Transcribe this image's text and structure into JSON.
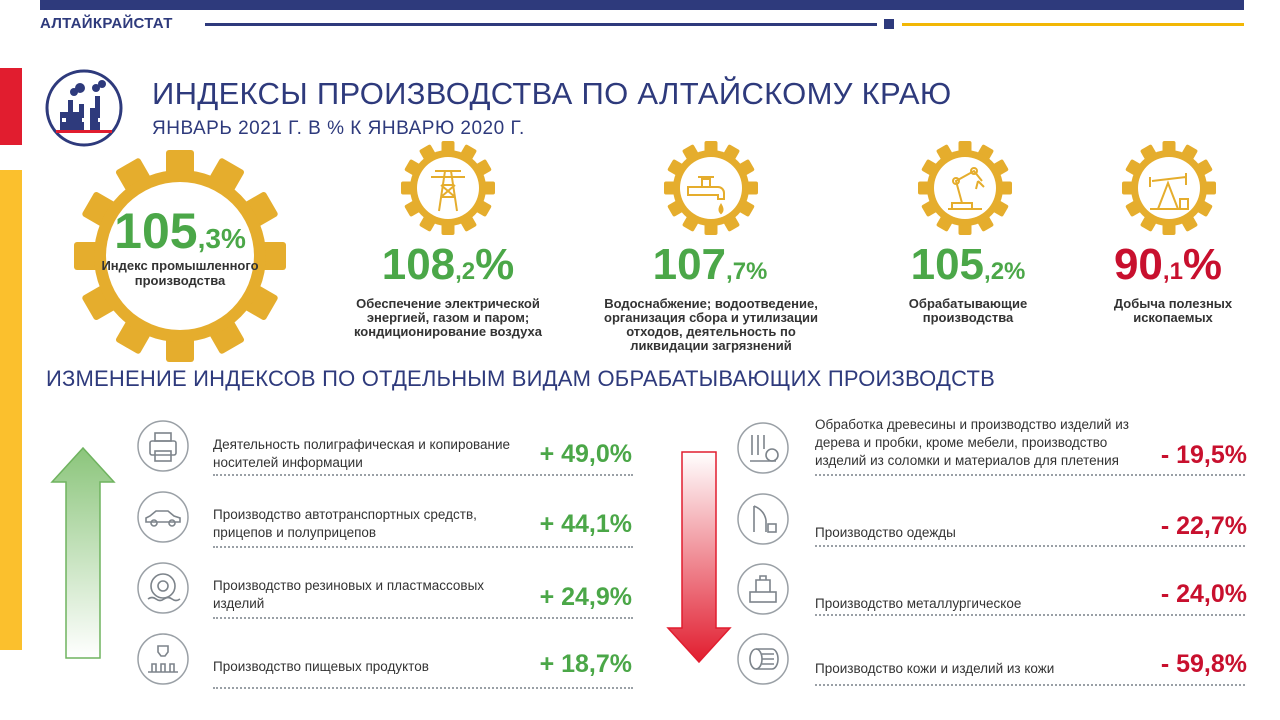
{
  "header": {
    "agency": "АЛТАЙКРАЙСТАТ",
    "title": "ИНДЕКСЫ ПРОИЗВОДСТВА ПО АЛТАЙСКОМУ КРАЮ",
    "subtitle": "ЯНВАРЬ 2021 Г. В % К ЯНВАРЮ 2020 Г."
  },
  "main_index": {
    "value_int": "105",
    "value_dec": ",3%",
    "label": "Индекс промышленного производства",
    "icon": "factory-icon"
  },
  "categories": [
    {
      "value_int": "108",
      "value_dec": ",2",
      "pct": "%",
      "label": "Обеспечение электрической энергией, газом и паром; кондиционирование воздуха",
      "icon": "power-tower-icon",
      "trend": "up"
    },
    {
      "value_int": "107",
      "value_dec": ",7",
      "pct": "%",
      "label": "Водоснабжение; водоотведение, организация сбора и утилизации отходов, деятельность по ликвидации загрязнений",
      "icon": "water-tap-icon",
      "trend": "up"
    },
    {
      "value_int": "105",
      "value_dec": ",2",
      "pct": "%",
      "label": "Обрабатывающие производства",
      "icon": "robot-arm-icon",
      "trend": "up"
    },
    {
      "value_int": "90",
      "value_dec": ",1",
      "pct": "%",
      "label": "Добыча полезных ископаемых",
      "icon": "oil-pump-icon",
      "trend": "down"
    }
  ],
  "section_title": "ИЗМЕНЕНИЕ ИНДЕКСОВ ПО ОТДЕЛЬНЫМ ВИДАМ ОБРАБАТЫВАЮЩИХ ПРОИЗВОДСТВ",
  "growth": [
    {
      "label": "Деятельность полиграфическая и копирование носителей информации",
      "value": "+ 49,0%",
      "icon": "printer-icon"
    },
    {
      "label": "Производство автотранспортных средств, прицепов и полуприцепов",
      "value": "+ 44,1%",
      "icon": "car-icon"
    },
    {
      "label": "Производство резиновых и пластмассовых изделий",
      "value": "+ 24,9%",
      "icon": "tire-icon"
    },
    {
      "label": "Производство пищевых продуктов",
      "value": "+ 18,7%",
      "icon": "bottling-line-icon"
    }
  ],
  "decline": [
    {
      "label": "Обработка древесины и производство изделий из дерева и пробки, кроме мебели, производство изделий из соломки и материалов для плетения",
      "value": "- 19,5%",
      "icon": "wood-saw-icon"
    },
    {
      "label": "Производство одежды",
      "value": "- 22,7%",
      "icon": "sewing-icon"
    },
    {
      "label": "Производство металлургическое",
      "value": "- 24,0%",
      "icon": "metal-works-icon"
    },
    {
      "label": "Производство кожи и изделий из кожи",
      "value": "- 59,8%",
      "icon": "leather-roll-icon"
    }
  ],
  "colors": {
    "brand_blue": "#2e3a7c",
    "gold": "#f2b705",
    "green": "#4ba748",
    "red": "#c8102e"
  }
}
